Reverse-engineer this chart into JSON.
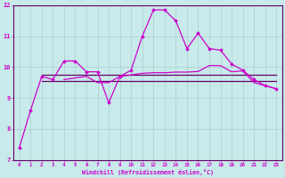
{
  "x": [
    0,
    1,
    2,
    3,
    4,
    5,
    6,
    7,
    8,
    9,
    10,
    11,
    12,
    13,
    14,
    15,
    16,
    17,
    18,
    19,
    20,
    21,
    22,
    23
  ],
  "line_main": [
    7.4,
    8.6,
    9.7,
    9.6,
    10.2,
    10.2,
    9.85,
    9.85,
    8.85,
    9.7,
    9.9,
    11.0,
    11.85,
    11.85,
    11.5,
    10.6,
    11.1,
    10.6,
    10.55,
    10.1,
    9.9,
    9.6,
    9.4,
    9.3
  ],
  "line_flat1": [
    null,
    null,
    9.75,
    9.75,
    9.75,
    9.75,
    9.75,
    9.75,
    9.75,
    9.75,
    9.75,
    9.75,
    9.75,
    9.75,
    9.75,
    9.75,
    9.75,
    9.75,
    9.75,
    9.75,
    9.75,
    9.75,
    9.75,
    9.75
  ],
  "line_flat2": [
    null,
    null,
    9.55,
    9.55,
    9.55,
    9.55,
    9.55,
    9.55,
    9.55,
    9.55,
    9.55,
    9.55,
    9.55,
    9.55,
    9.55,
    9.55,
    9.55,
    9.55,
    9.55,
    9.55,
    9.55,
    9.55,
    9.55,
    9.55
  ],
  "line_sloped": [
    null,
    null,
    null,
    null,
    9.6,
    9.65,
    9.7,
    9.5,
    9.5,
    9.7,
    9.75,
    9.8,
    9.82,
    9.82,
    9.84,
    9.84,
    9.86,
    10.05,
    10.05,
    9.85,
    9.88,
    9.5,
    9.4,
    9.3
  ],
  "bg_color": "#c8eaea",
  "grid_color": "#a8d0d0",
  "line_color": "#cc00cc",
  "line_color_dark": "#660066",
  "xlabel": "Windchill (Refroidissement éolien,°C)",
  "ylim": [
    7,
    12
  ],
  "xlim": [
    -0.5,
    23.5
  ],
  "yticks": [
    7,
    8,
    9,
    10,
    11,
    12
  ],
  "xticks": [
    0,
    1,
    2,
    3,
    4,
    5,
    6,
    7,
    8,
    9,
    10,
    11,
    12,
    13,
    14,
    15,
    16,
    17,
    18,
    19,
    20,
    21,
    22,
    23
  ]
}
